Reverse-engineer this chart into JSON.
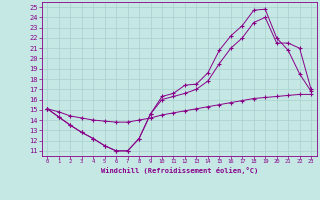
{
  "xlabel": "Windchill (Refroidissement éolien,°C)",
  "bg_color": "#c5e8e5",
  "line_color": "#880088",
  "grid_color": "#a8d0cc",
  "xlim": [
    -0.5,
    23.5
  ],
  "ylim": [
    10.5,
    25.5
  ],
  "xticks": [
    0,
    1,
    2,
    3,
    4,
    5,
    6,
    7,
    8,
    9,
    10,
    11,
    12,
    13,
    14,
    15,
    16,
    17,
    18,
    19,
    20,
    21,
    22,
    23
  ],
  "yticks": [
    11,
    12,
    13,
    14,
    15,
    16,
    17,
    18,
    19,
    20,
    21,
    22,
    23,
    24,
    25
  ],
  "curve1_x": [
    0,
    1,
    2,
    3,
    4,
    5,
    6,
    7,
    8,
    9,
    10,
    11,
    12,
    13,
    14,
    15,
    16,
    17,
    18,
    19,
    20,
    21,
    22,
    23
  ],
  "curve1_y": [
    15.1,
    14.3,
    13.5,
    12.8,
    12.2,
    11.5,
    11.0,
    11.0,
    12.2,
    14.6,
    16.3,
    16.6,
    17.4,
    17.5,
    18.6,
    20.8,
    22.2,
    23.2,
    24.7,
    24.8,
    22.0,
    20.8,
    18.5,
    16.8
  ],
  "curve2_x": [
    0,
    1,
    2,
    3,
    4,
    5,
    6,
    7,
    8,
    9,
    10,
    11,
    12,
    13,
    14,
    15,
    16,
    17,
    18,
    19,
    20,
    21,
    22,
    23
  ],
  "curve2_y": [
    15.1,
    14.3,
    13.5,
    12.8,
    12.2,
    11.5,
    11.0,
    11.0,
    12.2,
    14.6,
    16.0,
    16.3,
    16.6,
    17.0,
    17.8,
    19.5,
    21.0,
    22.0,
    23.5,
    24.0,
    21.5,
    21.5,
    21.0,
    17.0
  ],
  "curve3_x": [
    0,
    1,
    2,
    3,
    4,
    5,
    6,
    7,
    8,
    9,
    10,
    11,
    12,
    13,
    14,
    15,
    16,
    17,
    18,
    19,
    20,
    21,
    22,
    23
  ],
  "curve3_y": [
    15.1,
    14.8,
    14.4,
    14.2,
    14.0,
    13.9,
    13.8,
    13.8,
    14.0,
    14.2,
    14.5,
    14.7,
    14.9,
    15.1,
    15.3,
    15.5,
    15.7,
    15.9,
    16.1,
    16.2,
    16.3,
    16.4,
    16.5,
    16.5
  ]
}
